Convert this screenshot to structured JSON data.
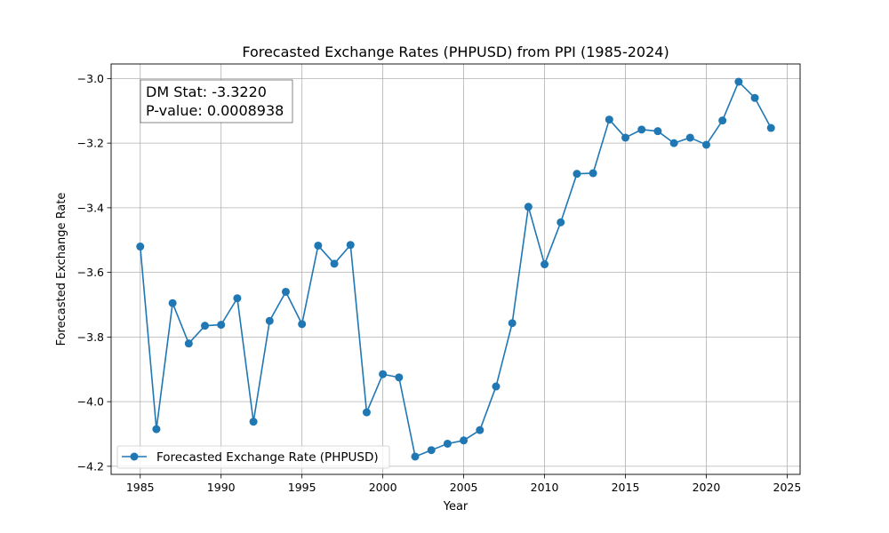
{
  "chart_data": {
    "type": "line",
    "title": "Forecasted Exchange Rates (PHPUSD) from PPI (1985-2024)",
    "xlabel": "Year",
    "ylabel": "Forecasted Exchange Rate",
    "xlim": [
      1983.2,
      2025.8
    ],
    "ylim": [
      -4.225,
      -2.955
    ],
    "xticks": [
      1985,
      1990,
      1995,
      2000,
      2005,
      2010,
      2015,
      2020,
      2025
    ],
    "yticks": [
      -4.2,
      -4.0,
      -3.8,
      -3.6,
      -3.4,
      -3.2,
      -3.0
    ],
    "ytick_labels": [
      "−4.2",
      "−4.0",
      "−3.8",
      "−3.6",
      "−3.4",
      "−3.2",
      "−3.0"
    ],
    "grid": true,
    "legend_position": "lower-left",
    "annotation": {
      "line1": "DM Stat: -3.3220",
      "line2": "P-value: 0.0008938"
    },
    "series": [
      {
        "name": "Forecasted Exchange Rate (PHPUSD)",
        "color": "#1f77b4",
        "marker": "circle",
        "x": [
          1985,
          1986,
          1987,
          1988,
          1989,
          1990,
          1991,
          1992,
          1993,
          1994,
          1995,
          1996,
          1997,
          1998,
          1999,
          2000,
          2001,
          2002,
          2003,
          2004,
          2005,
          2006,
          2007,
          2008,
          2009,
          2010,
          2011,
          2012,
          2013,
          2014,
          2015,
          2016,
          2017,
          2018,
          2019,
          2020,
          2021,
          2022,
          2023,
          2024
        ],
        "y": [
          -3.52,
          -4.085,
          -3.695,
          -3.82,
          -3.765,
          -3.762,
          -3.68,
          -4.062,
          -3.75,
          -3.66,
          -3.76,
          -3.517,
          -3.573,
          -3.515,
          -4.033,
          -3.915,
          -3.925,
          -4.17,
          -4.15,
          -4.13,
          -4.12,
          -4.088,
          -3.953,
          -3.757,
          -3.397,
          -3.575,
          -3.445,
          -3.295,
          -3.293,
          -3.127,
          -3.183,
          -3.158,
          -3.163,
          -3.2,
          -3.183,
          -3.205,
          -3.13,
          -3.01,
          -3.06,
          -3.153
        ]
      }
    ]
  }
}
